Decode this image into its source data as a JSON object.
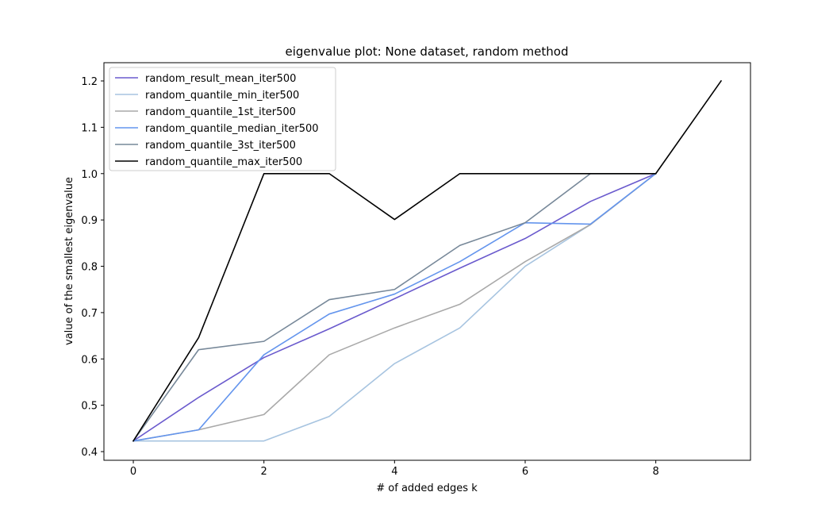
{
  "chart_data": {
    "type": "line",
    "title": "eigenvalue plot: None dataset, random method",
    "xlabel": "# of added edges k",
    "ylabel": "value of the smallest eigenvalue",
    "xlim": [
      -0.45,
      9.45
    ],
    "ylim": [
      0.3813,
      1.2394
    ],
    "xticks": [
      0,
      2,
      4,
      6,
      8
    ],
    "yticks": [
      0.4,
      0.5,
      0.6,
      0.7,
      0.8,
      0.9,
      1.0,
      1.1,
      1.2
    ],
    "xtick_labels": [
      "0",
      "2",
      "4",
      "6",
      "8"
    ],
    "ytick_labels": [
      "0.4",
      "0.5",
      "0.6",
      "0.7",
      "0.8",
      "0.9",
      "1.0",
      "1.1",
      "1.2"
    ],
    "grid": false,
    "legend_position": "upper-left",
    "series": [
      {
        "name": "random_result_mean_iter500",
        "color": "#6a5acd",
        "x": [
          0,
          1,
          2,
          3,
          4,
          5,
          6,
          7,
          8
        ],
        "y": [
          0.423,
          0.517,
          0.603,
          0.665,
          0.73,
          0.796,
          0.86,
          0.94,
          1.0
        ]
      },
      {
        "name": "random_quantile_min_iter500",
        "color": "#a7c4e0",
        "x": [
          0,
          1,
          2,
          3,
          4,
          5,
          6,
          7,
          8
        ],
        "y": [
          0.423,
          0.423,
          0.423,
          0.476,
          0.59,
          0.667,
          0.8,
          0.89,
          1.0
        ]
      },
      {
        "name": "random_quantile_1st_iter500",
        "color": "#a9a9a9",
        "x": [
          0,
          1,
          2,
          3,
          4,
          5,
          6,
          7,
          8
        ],
        "y": [
          0.423,
          0.447,
          0.48,
          0.609,
          0.667,
          0.718,
          0.81,
          0.89,
          1.0
        ]
      },
      {
        "name": "random_quantile_median_iter500",
        "color": "#6495ed",
        "x": [
          0,
          1,
          2,
          3,
          4,
          5,
          6,
          7,
          8
        ],
        "y": [
          0.423,
          0.447,
          0.609,
          0.697,
          0.74,
          0.81,
          0.894,
          0.891,
          1.0
        ]
      },
      {
        "name": "random_quantile_3st_iter500",
        "color": "#778899",
        "x": [
          0,
          1,
          2,
          3,
          4,
          5,
          6,
          7,
          8
        ],
        "y": [
          0.423,
          0.62,
          0.638,
          0.728,
          0.75,
          0.845,
          0.894,
          1.0,
          1.0
        ]
      },
      {
        "name": "random_quantile_max_iter500",
        "color": "#000000",
        "x": [
          0,
          1,
          2,
          3,
          4,
          5,
          6,
          7,
          8,
          9
        ],
        "y": [
          0.423,
          0.646,
          1.0,
          1.0,
          0.901,
          1.0,
          1.0,
          1.0,
          1.0,
          1.2
        ]
      }
    ]
  }
}
